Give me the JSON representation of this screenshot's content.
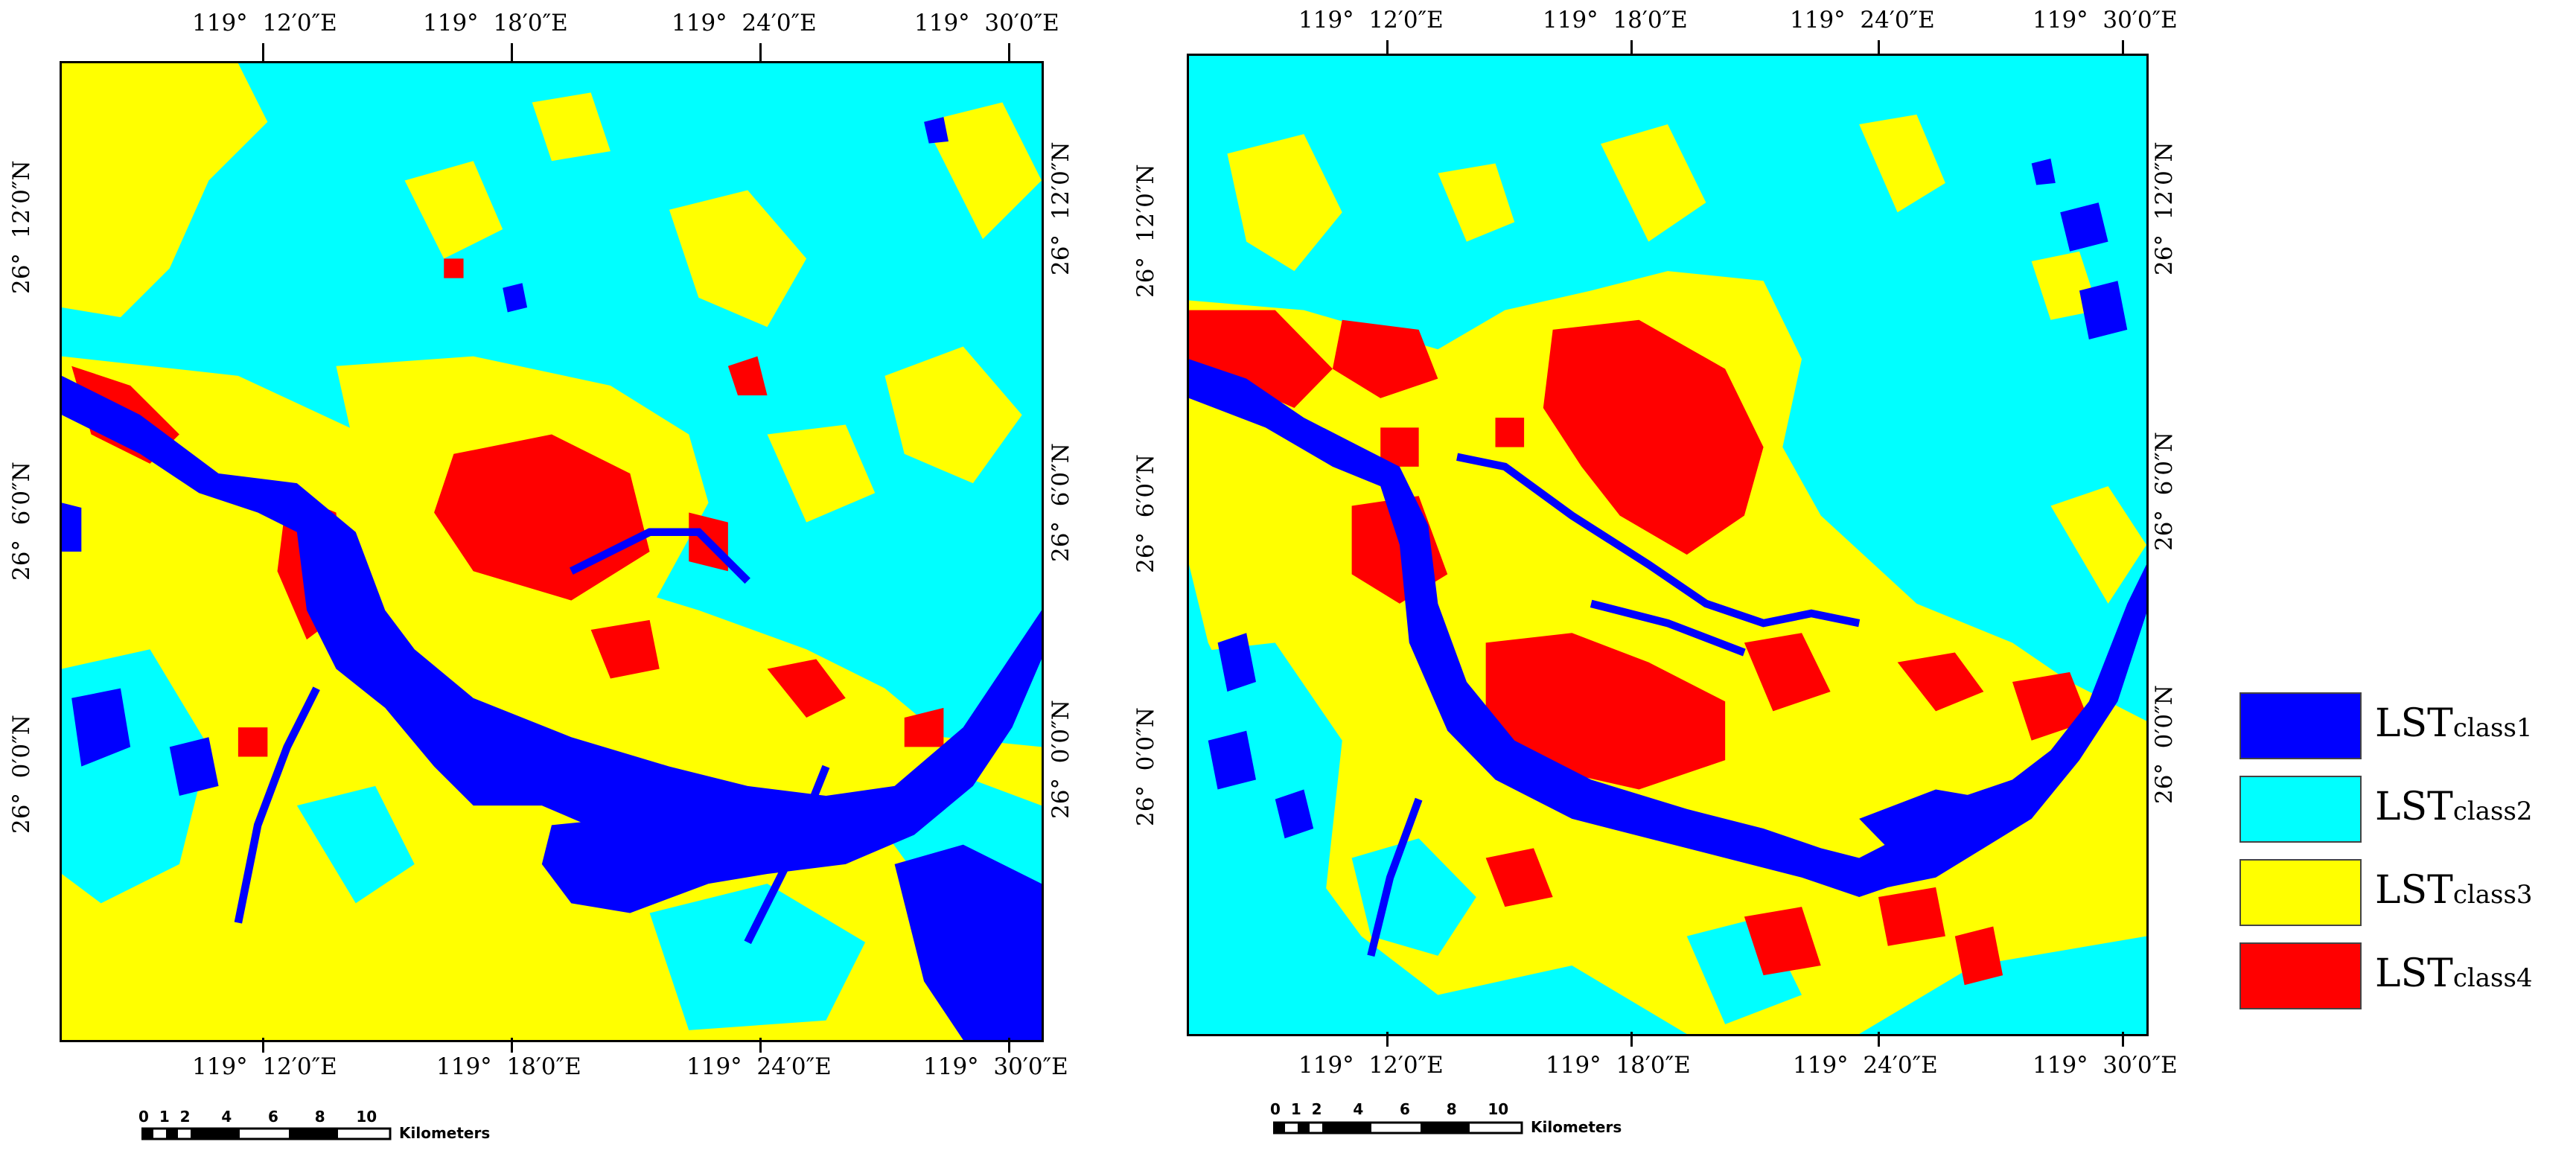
{
  "maps": [
    {
      "id": "left",
      "top_ticks": [
        "119°  12′0″E",
        "119°  18′0″E",
        "119°  24′0″E",
        "119°  30′0″E"
      ],
      "bottom_ticks": [
        "119°  12′0″E",
        "119°  18′0″E",
        "119°  24′0″E",
        "119°  30′0″E"
      ],
      "left_ticks": [
        "26°  12′0″N",
        "26°  6′0″N",
        "26°  0′0″N"
      ],
      "right_ticks": [
        "26°  12′0″N",
        "26°  6′0″N",
        "26°  0′0″N"
      ],
      "scale_numbers": "0  1  2      4       6       8      10",
      "scale_unit": "Kilometers"
    },
    {
      "id": "right",
      "top_ticks": [
        "119°  12′0″E",
        "119°  18′0″E",
        "119°  24′0″E",
        "119°  30′0″E"
      ],
      "bottom_ticks": [
        "119°  12′0″E",
        "119°  18′0″E",
        "119°  24′0″E",
        "119°  30′0″E"
      ],
      "left_ticks": [
        "26°  12′0″N",
        "26°  6′0″N",
        "26°  0′0″N"
      ],
      "right_ticks": [
        "26°  12′0″N",
        "26°  6′0″N",
        "26°  0′0″N"
      ],
      "scale_numbers": "0  1  2      4       6       8      10",
      "scale_unit": "Kilometers"
    }
  ],
  "legend": {
    "items": [
      {
        "main": "LST",
        "sub": "class1",
        "color": "#0000ff"
      },
      {
        "main": "LST",
        "sub": "class2",
        "color": "#00ffff"
      },
      {
        "main": "LST",
        "sub": "class3",
        "color": "#ffff00"
      },
      {
        "main": "LST",
        "sub": "class4",
        "color": "#ff0000"
      }
    ]
  },
  "colors": {
    "class1": "#0000ff",
    "class2": "#00ffff",
    "class3": "#ffff00",
    "class4": "#ff0000"
  }
}
